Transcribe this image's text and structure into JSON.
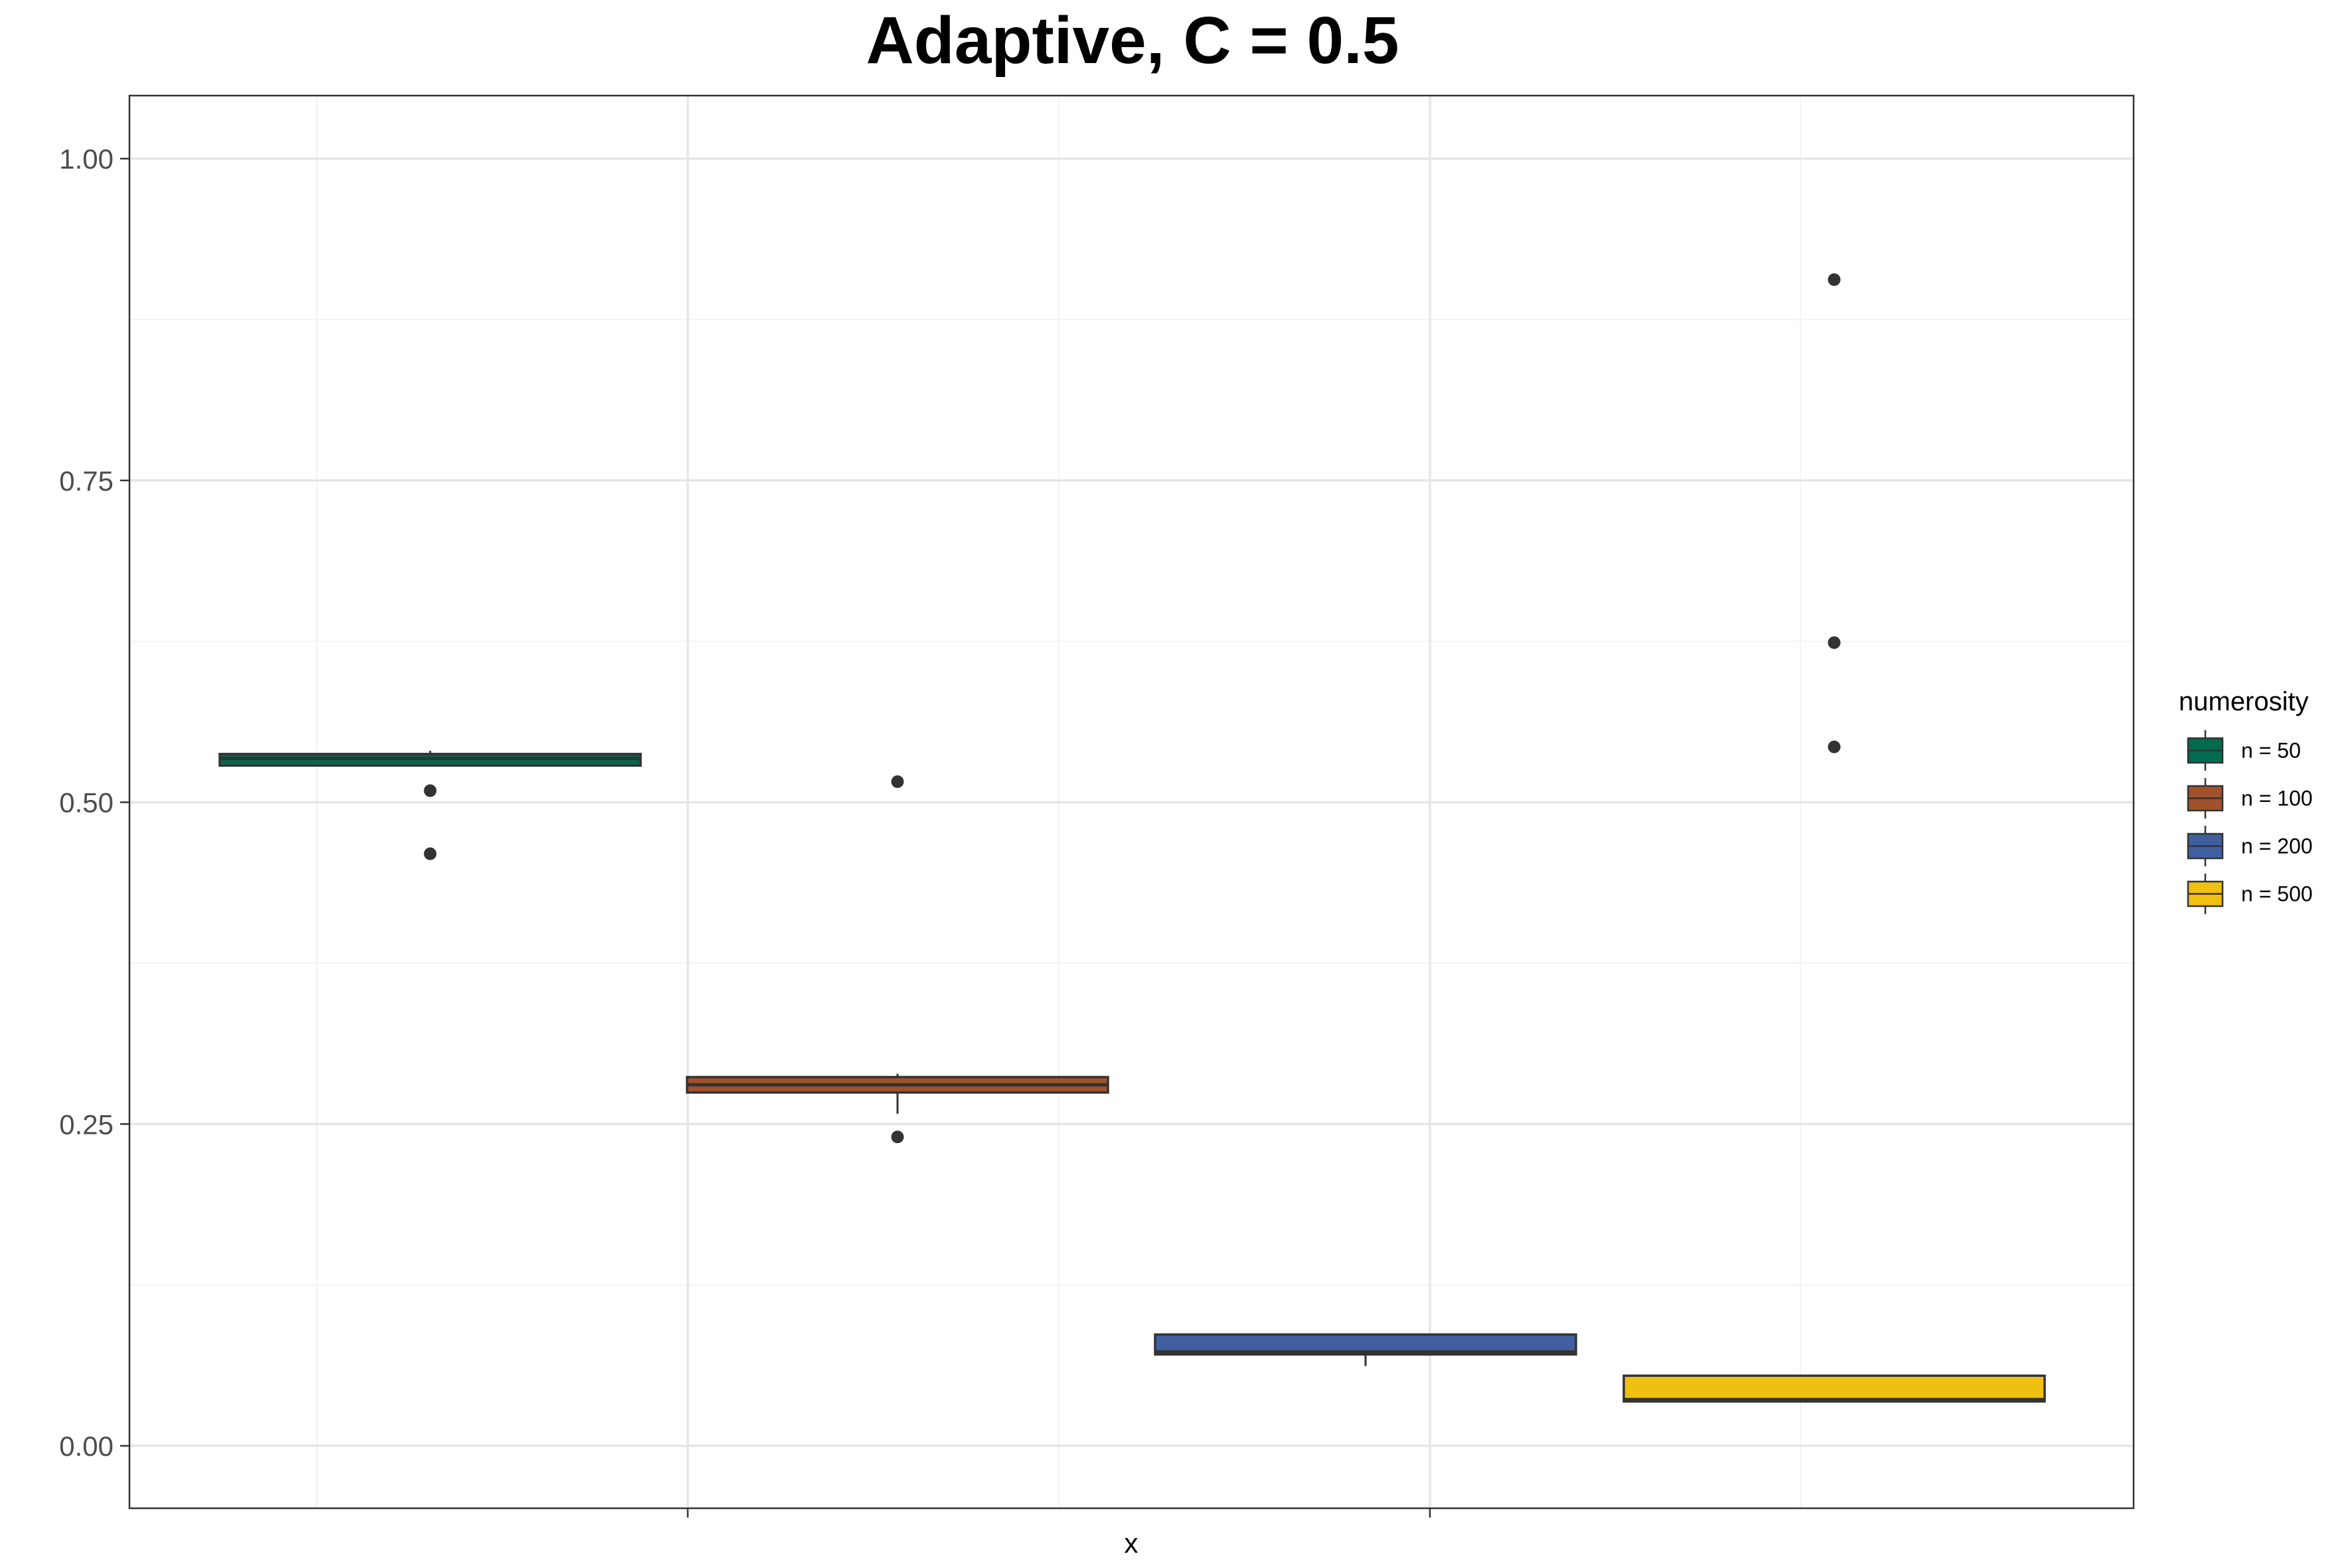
{
  "chart_data": {
    "type": "box",
    "title": "Adaptive, C = 0.5",
    "xlabel": "x",
    "ylabel": "",
    "ylim": [
      -0.05,
      1.05
    ],
    "y_ticks": [
      0.0,
      0.25,
      0.5,
      0.75,
      1.0
    ],
    "y_tick_labels": [
      "0.00",
      "0.25",
      "0.50",
      "0.75",
      "1.00"
    ],
    "grid": true,
    "legend": {
      "title": "numerosity",
      "position": "right",
      "entries": [
        "n = 50",
        "n = 100",
        "n = 200",
        "n = 500"
      ]
    },
    "series": [
      {
        "name": "n = 50",
        "color": "#006b4f",
        "q1": 0.5285,
        "median": 0.534,
        "q3": 0.5375,
        "whisker_low": 0.528,
        "whisker_high": 0.54,
        "outliers": [
          0.509,
          0.46
        ]
      },
      {
        "name": "n = 100",
        "color": "#a0522d",
        "q1": 0.2745,
        "median": 0.2805,
        "q3": 0.2865,
        "whisker_low": 0.258,
        "whisker_high": 0.289,
        "outliers": [
          0.516,
          0.24
        ]
      },
      {
        "name": "n = 200",
        "color": "#3f5fa0",
        "q1": 0.071,
        "median": 0.073,
        "q3": 0.0865,
        "whisker_low": 0.062,
        "whisker_high": 0.0865,
        "outliers": []
      },
      {
        "name": "n = 500",
        "color": "#f0c010",
        "q1": 0.0345,
        "median": 0.036,
        "q3": 0.0545,
        "whisker_low": 0.0345,
        "whisker_high": 0.0545,
        "outliers": [
          0.906,
          0.624,
          0.543
        ]
      }
    ]
  }
}
